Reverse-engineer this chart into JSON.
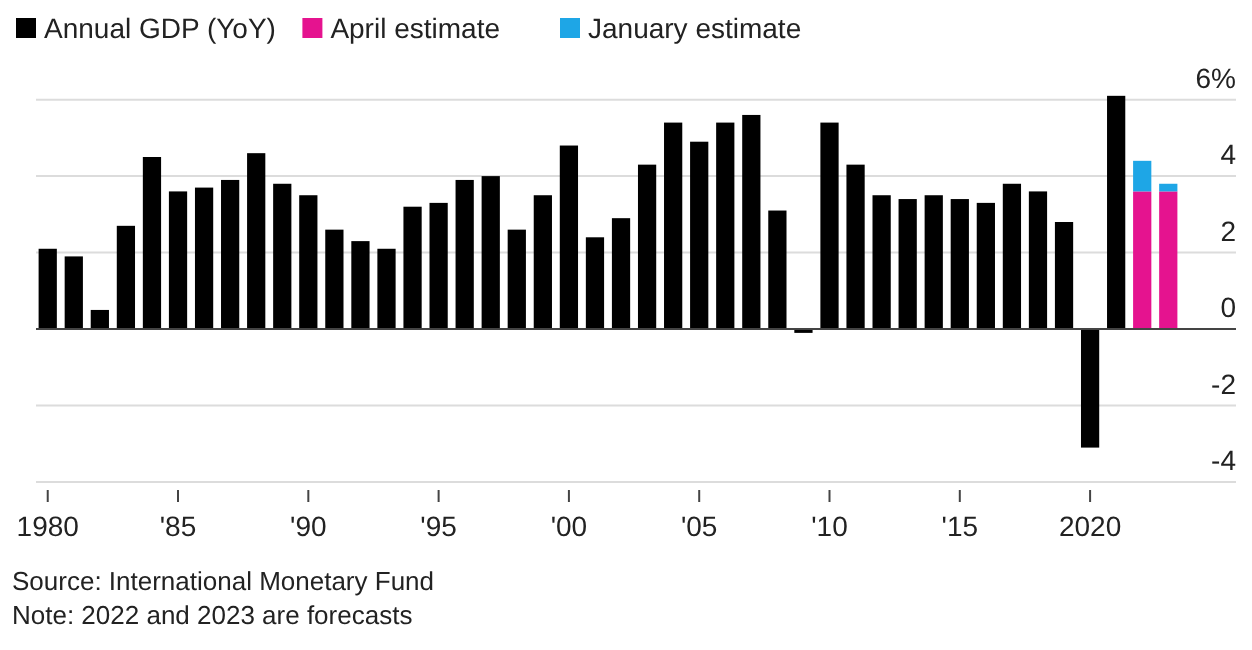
{
  "chart_data": {
    "type": "bar",
    "stacked": true,
    "categories": [
      "1980",
      null,
      null,
      null,
      null,
      "'85",
      null,
      null,
      null,
      null,
      "'90",
      null,
      null,
      null,
      null,
      "'95",
      null,
      null,
      null,
      null,
      "'00",
      null,
      null,
      null,
      null,
      "'05",
      null,
      null,
      null,
      null,
      "'10",
      null,
      null,
      null,
      null,
      "'15",
      null,
      null,
      null,
      null,
      "2020",
      null,
      null,
      null
    ],
    "series": [
      {
        "name": "Annual GDP (YoY)",
        "color": "#000000",
        "values": [
          2.1,
          1.9,
          0.5,
          2.7,
          4.5,
          3.6,
          3.7,
          3.9,
          4.6,
          3.8,
          3.5,
          2.6,
          2.3,
          2.1,
          3.2,
          3.3,
          3.9,
          4.0,
          2.6,
          3.5,
          4.8,
          2.4,
          2.9,
          4.3,
          5.4,
          4.9,
          5.4,
          5.6,
          3.1,
          -0.1,
          5.4,
          4.3,
          3.5,
          3.4,
          3.5,
          3.4,
          3.3,
          3.8,
          3.6,
          2.8,
          -3.1,
          6.1,
          null,
          null
        ]
      },
      {
        "name": "April estimate",
        "color": "#e5138f",
        "values": [
          null,
          null,
          null,
          null,
          null,
          null,
          null,
          null,
          null,
          null,
          null,
          null,
          null,
          null,
          null,
          null,
          null,
          null,
          null,
          null,
          null,
          null,
          null,
          null,
          null,
          null,
          null,
          null,
          null,
          null,
          null,
          null,
          null,
          null,
          null,
          null,
          null,
          null,
          null,
          null,
          null,
          null,
          3.6,
          3.6
        ]
      },
      {
        "name": "January estimate",
        "color": "#1ea6e6",
        "values": [
          null,
          null,
          null,
          null,
          null,
          null,
          null,
          null,
          null,
          null,
          null,
          null,
          null,
          null,
          null,
          null,
          null,
          null,
          null,
          null,
          null,
          null,
          null,
          null,
          null,
          null,
          null,
          null,
          null,
          null,
          null,
          null,
          null,
          null,
          null,
          null,
          null,
          null,
          null,
          null,
          null,
          null,
          0.8,
          0.2
        ]
      }
    ],
    "ylim": [
      -4,
      6.2
    ],
    "yticks": [
      {
        "value": 6,
        "label": "6%"
      },
      4,
      2,
      0,
      -2,
      -4
    ],
    "grid": "y",
    "legend": "top left",
    "annotations": [
      "Source: International Monetary Fund",
      "Note: 2022 and 2023 are forecasts"
    ]
  }
}
